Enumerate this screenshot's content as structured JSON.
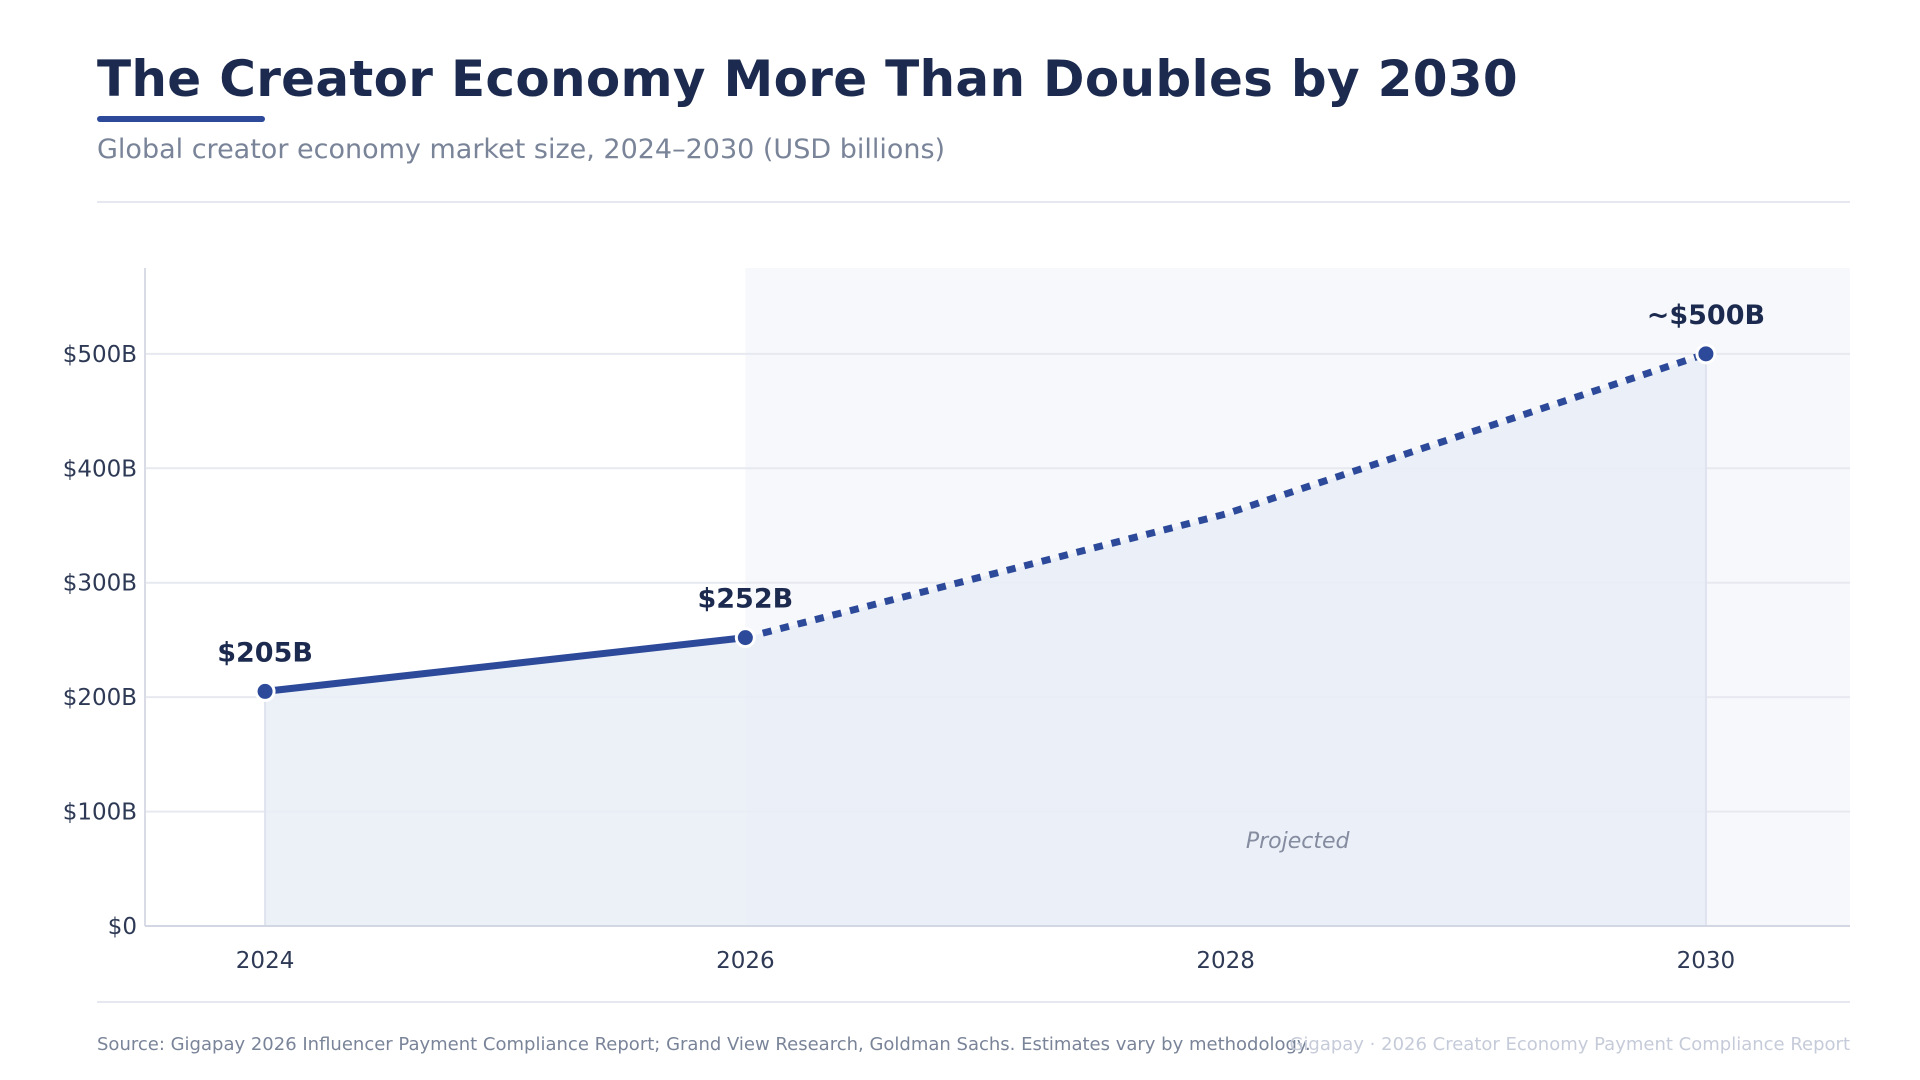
{
  "header": {
    "title": "The Creator Economy More Than Doubles by 2030",
    "subtitle": "Global creator economy market size, 2024–2030 (USD billions)"
  },
  "footer": {
    "source": "Source: Gigapay 2026 Influencer Payment Compliance Report; Grand View Research, Goldman Sachs. Estimates vary by methodology.",
    "brand": "Gigapay · 2026 Creator Economy Payment Compliance Report"
  },
  "colors": {
    "title": "#1b2a4e",
    "accent": "#2d4a9a",
    "muted": "#7a8499",
    "projection_band": "#f7f8fb",
    "area_fill": "#e9edf6",
    "grid": "#e7e9f0"
  },
  "chart_data": {
    "type": "line",
    "x": [
      2024,
      2026,
      2028,
      2030
    ],
    "series": [
      {
        "values": [
          205,
          252,
          360,
          500
        ],
        "observed_until": 2026,
        "projected_from": 2026
      }
    ],
    "data_labels": [
      {
        "x": 2024,
        "text": "$205B"
      },
      {
        "x": 2026,
        "text": "$252B"
      },
      {
        "x": 2030,
        "text": "~$500B"
      }
    ],
    "annotations": [
      {
        "text": "Projected",
        "x_range": [
          2026,
          2030.6
        ]
      }
    ],
    "xticks": [
      2024,
      2026,
      2028,
      2030
    ],
    "xtick_labels": [
      "2024",
      "2026",
      "2028",
      "2030"
    ],
    "yticks": [
      0,
      100,
      200,
      300,
      400,
      500
    ],
    "ytick_labels": [
      "$0",
      "$100B",
      "$200B",
      "$300B",
      "$400B",
      "$500B"
    ],
    "xlim": [
      2023.5,
      2030.6
    ],
    "ylim": [
      0,
      575
    ],
    "grid": true,
    "legend": "none",
    "area_under_line": true
  }
}
